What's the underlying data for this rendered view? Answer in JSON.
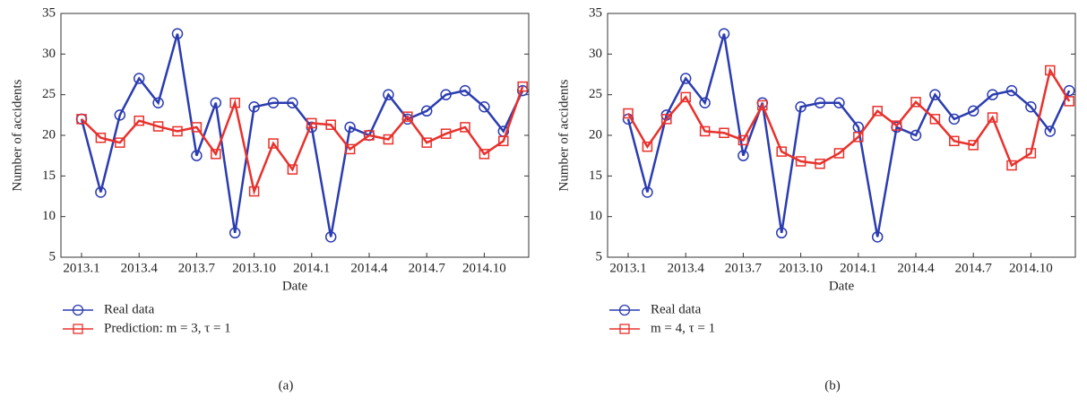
{
  "chart_data": [
    {
      "type": "line",
      "caption": "(a)",
      "xlabel": "Date",
      "ylabel": "Number of accidents",
      "categories": [
        "2013.1",
        null,
        null,
        "2013.4",
        null,
        null,
        "2013.7",
        null,
        null,
        "2013.10",
        null,
        null,
        "2014.1",
        null,
        null,
        "2014.4",
        null,
        null,
        "2014.7",
        null,
        null,
        "2014.10",
        null,
        null
      ],
      "ylim": [
        5,
        35
      ],
      "yticks": [
        5,
        10,
        15,
        20,
        25,
        30,
        35
      ],
      "series": [
        {
          "name": "Real data",
          "color": "#2b3cb0",
          "marker": "circle",
          "values": [
            22,
            13,
            22.5,
            27,
            24,
            32.5,
            17.5,
            24,
            8,
            23.5,
            24,
            24,
            21,
            7.5,
            21,
            20,
            25,
            22,
            23,
            25,
            25.5,
            23.5,
            20.5,
            25.5
          ]
        },
        {
          "name": "Prediction: m = 3, τ = 1",
          "color": "#e8312c",
          "marker": "square",
          "values": [
            22,
            19.7,
            19.1,
            21.8,
            21.1,
            20.5,
            21,
            17.7,
            24,
            13.1,
            19,
            15.8,
            21.5,
            21.3,
            18.3,
            20,
            19.5,
            22.3,
            19.1,
            20.2,
            21,
            17.7,
            19.3,
            26
          ]
        }
      ]
    },
    {
      "type": "line",
      "caption": "(b)",
      "xlabel": "Date",
      "ylabel": "Number of accidents",
      "categories": [
        "2013.1",
        null,
        null,
        "2013.4",
        null,
        null,
        "2013.7",
        null,
        null,
        "2013.10",
        null,
        null,
        "2014.1",
        null,
        null,
        "2014.4",
        null,
        null,
        "2014.7",
        null,
        null,
        "2014.10",
        null,
        null
      ],
      "ylim": [
        5,
        35
      ],
      "yticks": [
        5,
        10,
        15,
        20,
        25,
        30,
        35
      ],
      "series": [
        {
          "name": "Real data",
          "color": "#2b3cb0",
          "marker": "circle",
          "values": [
            22,
            13,
            22.5,
            27,
            24,
            32.5,
            17.5,
            24,
            8,
            23.5,
            24,
            24,
            21,
            7.5,
            21,
            20,
            25,
            22,
            23,
            25,
            25.5,
            23.5,
            20.5,
            25.5
          ]
        },
        {
          "name": "m = 4, τ = 1",
          "color": "#e8312c",
          "marker": "square",
          "values": [
            22.7,
            18.6,
            22,
            24.7,
            20.5,
            20.3,
            19.4,
            23.7,
            18,
            16.8,
            16.5,
            17.8,
            19.8,
            23,
            21.2,
            24.1,
            22,
            19.3,
            18.8,
            22.2,
            16.3,
            17.8,
            28,
            24.2
          ]
        }
      ]
    }
  ]
}
